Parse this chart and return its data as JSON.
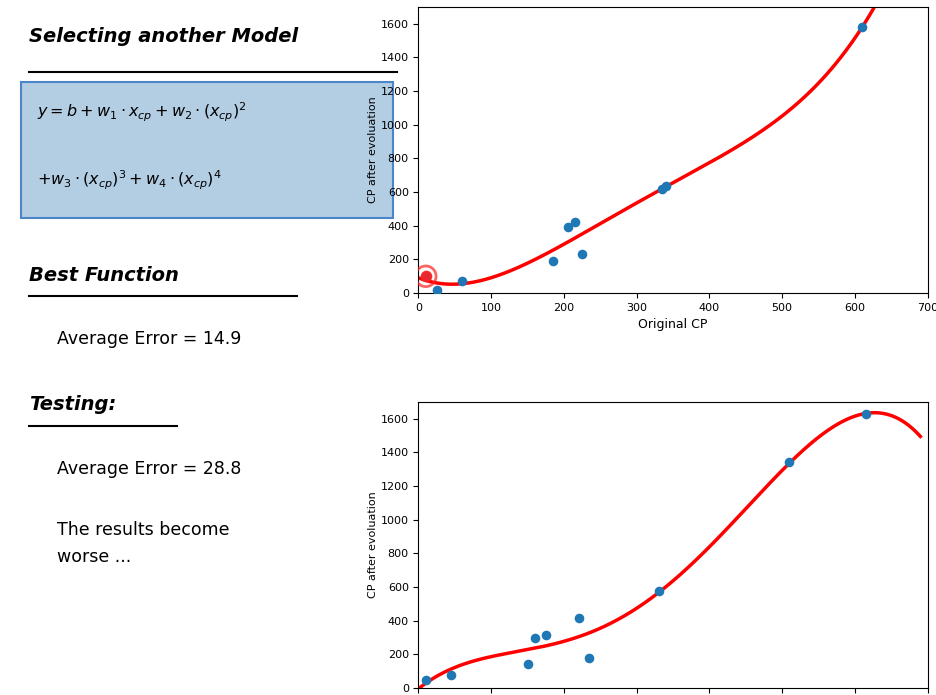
{
  "title": "Selecting another Model",
  "best_function_label": "Best Function",
  "avg_error_train": "Average Error = 14.9",
  "testing_label": "Testing:",
  "avg_error_test": "Average Error = 28.8",
  "worse_text": "The results become\nworse ...",
  "xlabel": "Original CP",
  "ylabel": "CP after evoluation",
  "xlim": [
    0,
    700
  ],
  "ylim": [
    0,
    1700
  ],
  "xticks": [
    0,
    100,
    200,
    300,
    400,
    500,
    600,
    700
  ],
  "yticks": [
    0,
    200,
    400,
    600,
    800,
    1000,
    1200,
    1400,
    1600
  ],
  "scatter1_x": [
    10,
    25,
    60,
    185,
    205,
    215,
    225,
    335,
    340,
    610
  ],
  "scatter1_y": [
    100,
    20,
    75,
    190,
    390,
    420,
    230,
    620,
    635,
    1580
  ],
  "scatter1_highlight_x": 10,
  "scatter1_highlight_y": 100,
  "scatter2_x": [
    10,
    45,
    150,
    160,
    175,
    220,
    235,
    330,
    510,
    615
  ],
  "scatter2_y": [
    50,
    80,
    145,
    295,
    315,
    415,
    180,
    575,
    1340,
    1630
  ],
  "curve_color": "#ff0000",
  "scatter_color": "#1f77b4",
  "highlight_color": "#ff2222",
  "bg_color": "#ffffff",
  "formula_box_color": "#b3cde3",
  "formula_box_edge": "#4a86c8"
}
